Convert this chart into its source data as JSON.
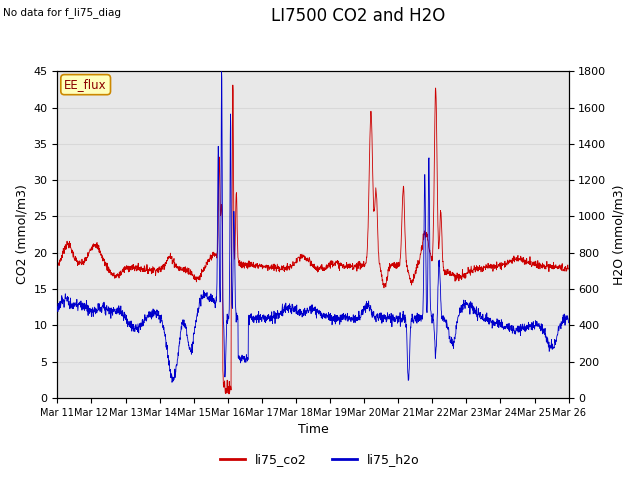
{
  "title": "LI7500 CO2 and H2O",
  "top_left_text": "No data for f_li75_diag",
  "xlabel": "Time",
  "ylabel_left": "CO2 (mmol/m3)",
  "ylabel_right": "H2O (mmol/m3)",
  "ylim_left": [
    0,
    45
  ],
  "ylim_right": [
    0,
    1800
  ],
  "yticks_left": [
    0,
    5,
    10,
    15,
    20,
    25,
    30,
    35,
    40,
    45
  ],
  "yticks_right": [
    0,
    200,
    400,
    600,
    800,
    1000,
    1200,
    1400,
    1600,
    1800
  ],
  "color_co2": "#cc0000",
  "color_h2o": "#0000cc",
  "legend_labels": [
    "li75_co2",
    "li75_h2o"
  ],
  "annotation_box": "EE_flux",
  "annotation_box_facecolor": "#ffffbb",
  "annotation_box_edgecolor": "#cc8800",
  "grid_color": "#d8d8d8",
  "background_color": "#e8e8e8",
  "title_fontsize": 12,
  "axis_fontsize": 9,
  "tick_fontsize": 8,
  "xtick_labels": [
    "Mar 11",
    "Mar 12",
    "Mar 13",
    "Mar 14",
    "Mar 15",
    "Mar 16",
    "Mar 17",
    "Mar 18",
    "Mar 19",
    "Mar 20",
    "Mar 21",
    "Mar 22",
    "Mar 23",
    "Mar 24",
    "Mar 25",
    "Mar 26"
  ]
}
